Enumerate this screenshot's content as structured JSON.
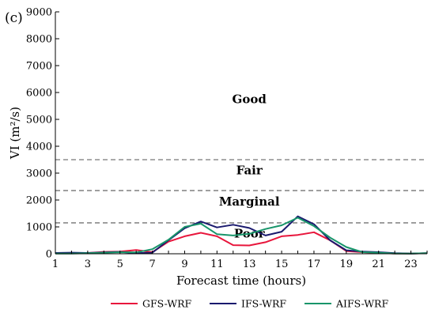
{
  "panel_label": "(c)",
  "chart_data": {
    "type": "line",
    "title": "",
    "xlabel": "Forecast time (hours)",
    "ylabel": "VI (m²/s)",
    "xlim": [
      1,
      24
    ],
    "ylim": [
      0,
      9000
    ],
    "xticks": [
      1,
      3,
      5,
      7,
      9,
      11,
      13,
      15,
      17,
      19,
      21,
      23
    ],
    "yticks": [
      0,
      1000,
      2000,
      3000,
      4000,
      5000,
      6000,
      7000,
      8000,
      9000
    ],
    "x": [
      1,
      2,
      3,
      4,
      5,
      6,
      7,
      8,
      9,
      10,
      11,
      12,
      13,
      14,
      15,
      16,
      17,
      18,
      19,
      20,
      21,
      22,
      23,
      24
    ],
    "series": [
      {
        "name": "GFS-WRF",
        "color": "#e8163c",
        "values": [
          20,
          20,
          30,
          70,
          80,
          140,
          60,
          450,
          650,
          780,
          650,
          320,
          310,
          430,
          650,
          700,
          800,
          500,
          100,
          60,
          30,
          10,
          10,
          20
        ]
      },
      {
        "name": "IFS-WRF",
        "color": "#1a1a6e",
        "values": [
          30,
          40,
          30,
          50,
          70,
          20,
          40,
          500,
          950,
          1200,
          980,
          1080,
          960,
          680,
          820,
          1390,
          1100,
          500,
          130,
          80,
          60,
          20,
          10,
          20
        ]
      },
      {
        "name": "AIFS-WRF",
        "color": "#18956a",
        "values": [
          10,
          10,
          20,
          40,
          60,
          50,
          170,
          520,
          1000,
          1120,
          730,
          680,
          740,
          920,
          1060,
          1340,
          1030,
          600,
          250,
          60,
          40,
          10,
          10,
          20
        ]
      }
    ],
    "thresholds": [
      {
        "value": 1150
      },
      {
        "value": 2350
      },
      {
        "value": 3500
      }
    ],
    "zones": [
      {
        "label": "Poor",
        "x": 13,
        "y": 600
      },
      {
        "label": "Marginal",
        "x": 13,
        "y": 1800
      },
      {
        "label": "Fair",
        "x": 13,
        "y": 2950
      },
      {
        "label": "Good",
        "x": 13,
        "y": 5600
      }
    ],
    "grid": false,
    "legend_position": "bottom"
  }
}
